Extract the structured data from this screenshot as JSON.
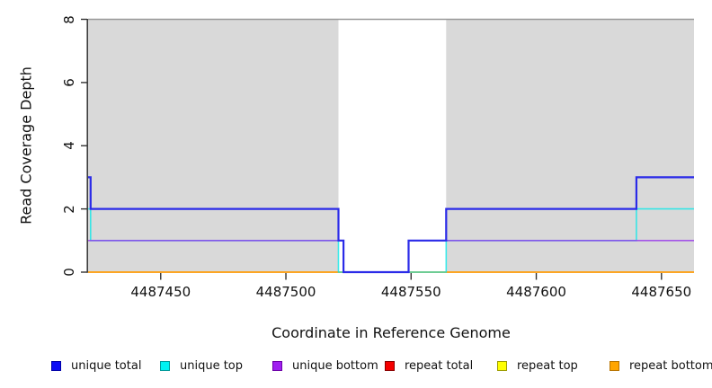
{
  "colors": {
    "background": "#ffffff",
    "shaded_region": "#d9d9d9",
    "plot_top_border": "#999999",
    "axis": "#333333",
    "text": "#111111"
  },
  "chart_data": {
    "type": "line",
    "title": "",
    "xlabel": "Coordinate in Reference Genome",
    "ylabel": "Read Coverage Depth",
    "xlim": [
      4487421,
      4487663
    ],
    "ylim": [
      0,
      8
    ],
    "x_ticks": [
      4487450,
      4487500,
      4487550,
      4487600,
      4487650
    ],
    "y_ticks": [
      0,
      2,
      4,
      6,
      8
    ],
    "grid": false,
    "step_interpolation": true,
    "legend_position": "bottom",
    "shaded_regions": [
      {
        "x0": 4487421,
        "x1": 4487521
      },
      {
        "x0": 4487564,
        "x1": 4487663
      }
    ],
    "draw_order": [
      3,
      4,
      5,
      1,
      2,
      0
    ],
    "series": [
      {
        "name": "unique total",
        "stroke": "#2b2be8",
        "opacity": 1,
        "width": 2.2,
        "legend_fill": "#0b0bf5",
        "legend_border": "#0000a8",
        "points": [
          [
            4487421,
            3
          ],
          [
            4487422,
            3
          ],
          [
            4487422,
            2
          ],
          [
            4487521,
            2
          ],
          [
            4487521,
            1
          ],
          [
            4487523,
            1
          ],
          [
            4487523,
            0
          ],
          [
            4487549,
            0
          ],
          [
            4487549,
            1
          ],
          [
            4487564,
            1
          ],
          [
            4487564,
            2
          ],
          [
            4487640,
            2
          ],
          [
            4487640,
            3
          ],
          [
            4487663,
            3
          ]
        ]
      },
      {
        "name": "unique top",
        "stroke": "#00e8e8",
        "opacity": 0.75,
        "width": 1.6,
        "legend_fill": "#00f2f2",
        "legend_border": "#009999",
        "points": [
          [
            4487421,
            2
          ],
          [
            4487422,
            2
          ],
          [
            4487422,
            1
          ],
          [
            4487521,
            1
          ],
          [
            4487521,
            0
          ],
          [
            4487564,
            0
          ],
          [
            4487564,
            1
          ],
          [
            4487640,
            1
          ],
          [
            4487640,
            2
          ],
          [
            4487663,
            2
          ]
        ]
      },
      {
        "name": "unique bottom",
        "stroke": "#9632eb",
        "opacity": 0.8,
        "width": 1.6,
        "legend_fill": "#a020f0",
        "legend_border": "#6c00a8",
        "points": [
          [
            4487421,
            1
          ],
          [
            4487523,
            1
          ],
          [
            4487523,
            0
          ],
          [
            4487549,
            0
          ],
          [
            4487549,
            1
          ],
          [
            4487663,
            1
          ]
        ]
      },
      {
        "name": "repeat total",
        "stroke": "#dd0000",
        "opacity": 1,
        "width": 1.6,
        "legend_fill": "#f50000",
        "legend_border": "#8b0000",
        "points": [
          [
            4487421,
            0
          ],
          [
            4487663,
            0
          ]
        ]
      },
      {
        "name": "repeat top",
        "stroke": "#ffff00",
        "opacity": 1,
        "width": 1.6,
        "legend_fill": "#ffff00",
        "legend_border": "#9c9c00",
        "points": [
          [
            4487421,
            0
          ],
          [
            4487663,
            0
          ]
        ]
      },
      {
        "name": "repeat bottom",
        "stroke": "#ff9d1c",
        "opacity": 1,
        "width": 1.6,
        "legend_fill": "#ffa500",
        "legend_border": "#b87400",
        "points": [
          [
            4487421,
            0
          ],
          [
            4487663,
            0
          ]
        ]
      }
    ]
  }
}
